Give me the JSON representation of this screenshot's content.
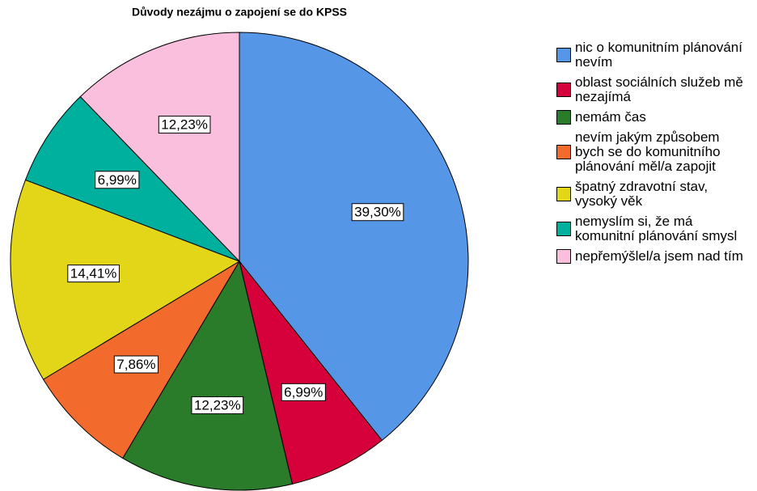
{
  "chart_data": {
    "type": "pie",
    "title": "Důvody nezájmu o zapojení se do KPSS",
    "categories": [
      "nic o komunitním plánování nevím",
      "oblast sociálních služeb mě nezajímá",
      "nemám čas",
      "nevím jakým způsobem bych se do komunitního plánování měl/a zapojit",
      "špatný zdravotní stav, vysoký věk",
      "nemyslím si, že má komunitní plánování smysl",
      "nepřemýšlel/a jsem nad tím"
    ],
    "values": [
      39.3,
      6.99,
      12.23,
      7.86,
      14.41,
      6.99,
      12.23
    ],
    "value_labels": [
      "39,30%",
      "6,99%",
      "12,23%",
      "7,86%",
      "14,41%",
      "6,99%",
      "12,23%"
    ],
    "colors": [
      "#5596e6",
      "#d6003a",
      "#2a7b2a",
      "#f26b2c",
      "#e3d619",
      "#00b09f",
      "#fbbfde"
    ]
  }
}
